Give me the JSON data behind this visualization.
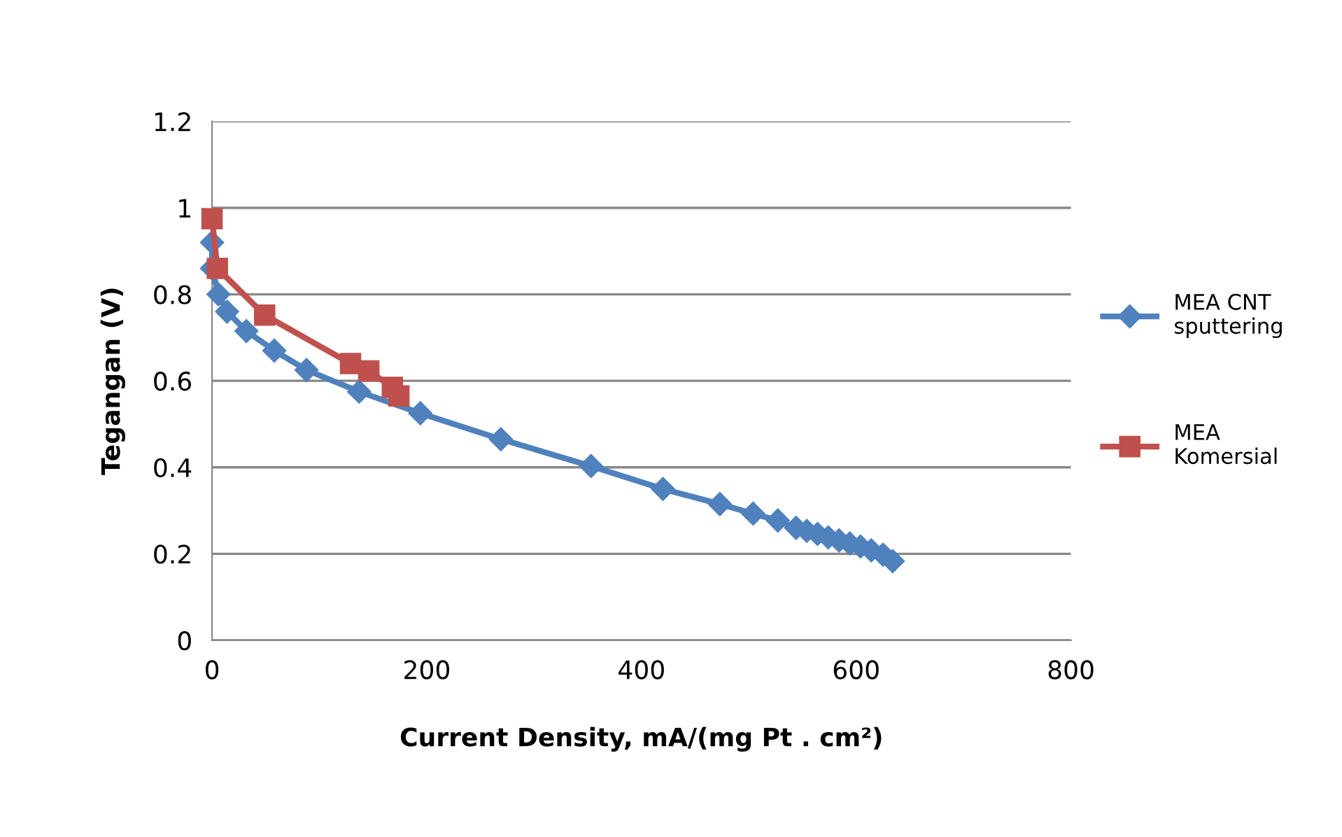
{
  "chart_data": {
    "type": "line",
    "xlabel": "Current Density, mA/(mg Pt . cm²)",
    "ylabel": "Tegangan (V)",
    "xlim": [
      0,
      800
    ],
    "xticks": [
      0,
      200,
      400,
      600,
      800
    ],
    "ylim": [
      0,
      1.2
    ],
    "yticks": [
      0,
      0.2,
      0.4,
      0.6,
      0.8,
      1,
      1.2
    ],
    "grid": "y",
    "legend": "right",
    "series": [
      {
        "name": "MEA CNT sputtering",
        "color": "#4f81bd",
        "marker": "diamond",
        "x": [
          0,
          0,
          6,
          14,
          32,
          58,
          88,
          137,
          194,
          269,
          353,
          420,
          473,
          504,
          527,
          544,
          554,
          564,
          574,
          584,
          594,
          604,
          614,
          625,
          634
        ],
        "values": [
          0.92,
          0.86,
          0.8,
          0.76,
          0.715,
          0.67,
          0.625,
          0.575,
          0.525,
          0.465,
          0.403,
          0.35,
          0.315,
          0.293,
          0.277,
          0.26,
          0.253,
          0.246,
          0.238,
          0.231,
          0.224,
          0.217,
          0.208,
          0.198,
          0.183
        ]
      },
      {
        "name": "MEA Komersial",
        "color": "#c0504d",
        "marker": "square",
        "x": [
          0,
          5,
          49,
          129,
          146,
          168,
          174
        ],
        "values": [
          0.975,
          0.86,
          0.752,
          0.64,
          0.623,
          0.585,
          0.565
        ]
      }
    ]
  }
}
